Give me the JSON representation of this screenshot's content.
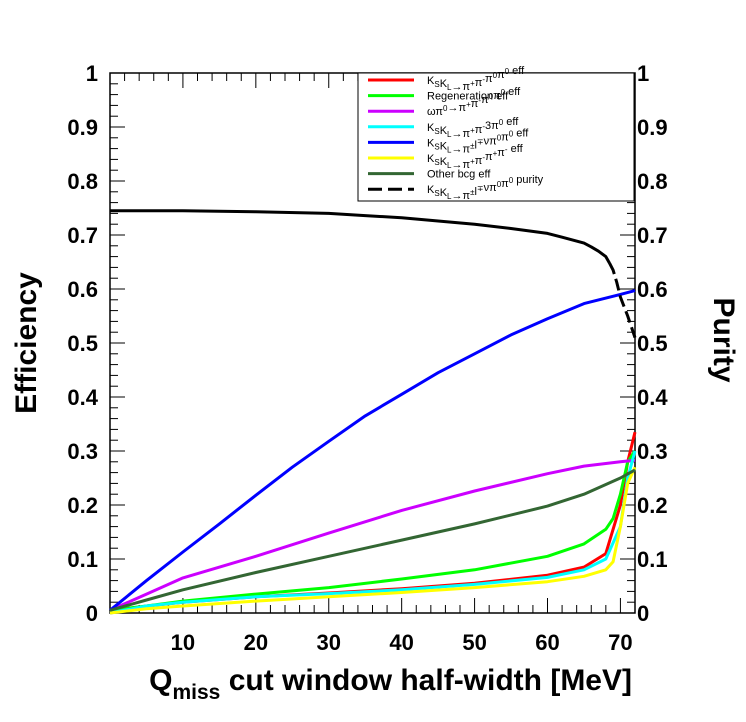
{
  "chart_data": {
    "type": "line",
    "xlabel": "Q",
    "xlabel_sub": "miss",
    "xlabel_rest": " cut window half-width [MeV]",
    "ylabel": "Efficiency",
    "ylabel_right": "Purity",
    "xlim": [
      0,
      72
    ],
    "ylim": [
      0,
      1
    ],
    "x_ticks": [
      10,
      20,
      30,
      40,
      50,
      60,
      70
    ],
    "y_ticks": [
      0,
      0.1,
      0.2,
      0.3,
      0.4,
      0.5,
      0.6,
      0.7,
      0.8,
      0.9,
      1
    ],
    "y_tick_labels": [
      "0",
      "0.1",
      "0.2",
      "0.3",
      "0.4",
      "0.5",
      "0.6",
      "0.7",
      "0.8",
      "0.9",
      "1"
    ],
    "legend_position": "top-right",
    "grid": false,
    "series": [
      {
        "name": "K_SK_L→π⁺π⁻π⁰π⁰ eff",
        "legend_parts": [
          [
            "K",
            ""
          ],
          [
            "S",
            "sub"
          ],
          [
            "K",
            ""
          ],
          [
            "L",
            "sub"
          ],
          [
            "→π",
            ""
          ],
          [
            "+",
            "sup"
          ],
          [
            "π",
            ""
          ],
          [
            "-",
            "sup"
          ],
          [
            "π",
            ""
          ],
          [
            "0",
            "sup"
          ],
          [
            "π",
            ""
          ],
          [
            "0",
            "sup"
          ],
          [
            " eff",
            ""
          ]
        ],
        "color": "#ff0000",
        "dash": false,
        "x": [
          0,
          5,
          10,
          20,
          30,
          40,
          50,
          60,
          65,
          68,
          70,
          71,
          72
        ],
        "y": [
          0.0,
          0.013,
          0.02,
          0.03,
          0.037,
          0.045,
          0.055,
          0.07,
          0.085,
          0.11,
          0.2,
          0.28,
          0.335
        ]
      },
      {
        "name": "Regeneration eff",
        "legend_parts": [
          [
            "Regeneration eff",
            ""
          ]
        ],
        "color": "#00ff00",
        "dash": false,
        "x": [
          0,
          5,
          10,
          20,
          30,
          40,
          50,
          60,
          65,
          68,
          69,
          70,
          71,
          72
        ],
        "y": [
          0.005,
          0.013,
          0.022,
          0.035,
          0.047,
          0.063,
          0.08,
          0.105,
          0.128,
          0.155,
          0.175,
          0.22,
          0.28,
          0.3
        ]
      },
      {
        "name": "ωπ⁰→π⁺π⁻π⁰π⁰ eff",
        "legend_parts": [
          [
            "ωπ",
            ""
          ],
          [
            "0",
            "sup"
          ],
          [
            "→π",
            ""
          ],
          [
            "+",
            "sup"
          ],
          [
            "π",
            ""
          ],
          [
            "-",
            "sup"
          ],
          [
            "π",
            ""
          ],
          [
            "0",
            "sup"
          ],
          [
            "π",
            ""
          ],
          [
            "0",
            "sup"
          ],
          [
            " eff",
            ""
          ]
        ],
        "color": "#cc00ff",
        "dash": false,
        "x": [
          0,
          5,
          10,
          20,
          30,
          40,
          50,
          60,
          65,
          70,
          72
        ],
        "y": [
          0.005,
          0.035,
          0.065,
          0.105,
          0.148,
          0.19,
          0.226,
          0.258,
          0.272,
          0.28,
          0.283
        ]
      },
      {
        "name": "K_SK_L→π⁺π⁻3π⁰ eff",
        "legend_parts": [
          [
            "K",
            ""
          ],
          [
            "S",
            "sub"
          ],
          [
            "K",
            ""
          ],
          [
            "L",
            "sub"
          ],
          [
            "→π",
            ""
          ],
          [
            "+",
            "sup"
          ],
          [
            "π",
            ""
          ],
          [
            "-",
            "sup"
          ],
          [
            "3π",
            ""
          ],
          [
            "0",
            "sup"
          ],
          [
            " eff",
            ""
          ]
        ],
        "color": "#00ffff",
        "dash": false,
        "x": [
          0,
          5,
          10,
          20,
          30,
          40,
          50,
          60,
          65,
          68,
          70,
          71,
          72
        ],
        "y": [
          0.0,
          0.013,
          0.02,
          0.03,
          0.036,
          0.043,
          0.053,
          0.066,
          0.08,
          0.1,
          0.16,
          0.25,
          0.3
        ]
      },
      {
        "name": "K_SK_L→π±l∓νπ⁰π⁰ eff",
        "legend_parts": [
          [
            "K",
            ""
          ],
          [
            "S",
            "sub"
          ],
          [
            "K",
            ""
          ],
          [
            "L",
            "sub"
          ],
          [
            "→π",
            ""
          ],
          [
            "±",
            "sup"
          ],
          [
            "l",
            ""
          ],
          [
            "∓",
            "sup"
          ],
          [
            "νπ",
            ""
          ],
          [
            "0",
            "sup"
          ],
          [
            "π",
            ""
          ],
          [
            "0",
            "sup"
          ],
          [
            " eff",
            ""
          ]
        ],
        "color": "#0000ff",
        "dash": false,
        "x": [
          0,
          5,
          10,
          15,
          20,
          25,
          30,
          35,
          40,
          45,
          50,
          55,
          60,
          65,
          70,
          72
        ],
        "y": [
          0.005,
          0.06,
          0.113,
          0.165,
          0.218,
          0.27,
          0.318,
          0.365,
          0.405,
          0.445,
          0.48,
          0.515,
          0.545,
          0.573,
          0.59,
          0.597
        ]
      },
      {
        "name": "K_SK_L→π⁺π⁻π⁺π⁻ eff",
        "legend_parts": [
          [
            "K",
            ""
          ],
          [
            "S",
            "sub"
          ],
          [
            "K",
            ""
          ],
          [
            "L",
            "sub"
          ],
          [
            "→π",
            ""
          ],
          [
            "+",
            "sup"
          ],
          [
            "π",
            ""
          ],
          [
            "-",
            "sup"
          ],
          [
            "π",
            ""
          ],
          [
            "+",
            "sup"
          ],
          [
            "π",
            ""
          ],
          [
            "-",
            "sup"
          ],
          [
            " eff",
            ""
          ]
        ],
        "color": "#ffff00",
        "dash": false,
        "x": [
          0,
          5,
          10,
          20,
          30,
          40,
          50,
          60,
          65,
          68,
          69,
          70,
          71,
          72
        ],
        "y": [
          0.0,
          0.008,
          0.013,
          0.022,
          0.03,
          0.038,
          0.047,
          0.058,
          0.068,
          0.08,
          0.095,
          0.16,
          0.24,
          0.27
        ]
      },
      {
        "name": "Other bcg eff",
        "legend_parts": [
          [
            "Other bcg eff",
            ""
          ]
        ],
        "color": "#336633",
        "dash": false,
        "x": [
          0,
          5,
          10,
          20,
          30,
          40,
          50,
          60,
          65,
          70,
          72
        ],
        "y": [
          0.005,
          0.024,
          0.043,
          0.075,
          0.105,
          0.135,
          0.165,
          0.198,
          0.22,
          0.25,
          0.265
        ]
      },
      {
        "name": "K_SK_L→π±l∓νπ⁰π⁰ purity",
        "legend_parts": [
          [
            "K",
            ""
          ],
          [
            "S",
            "sub"
          ],
          [
            "K",
            ""
          ],
          [
            "L",
            "sub"
          ],
          [
            "→π",
            ""
          ],
          [
            "±",
            "sup"
          ],
          [
            "l",
            ""
          ],
          [
            "∓",
            "sup"
          ],
          [
            "νπ",
            ""
          ],
          [
            "0",
            "sup"
          ],
          [
            "π",
            ""
          ],
          [
            "0",
            "sup"
          ],
          [
            " purity",
            ""
          ]
        ],
        "color": "#000000",
        "dash": true,
        "x": [
          0,
          10,
          20,
          30,
          35,
          40,
          45,
          50,
          55,
          60,
          62,
          65,
          66,
          67,
          68,
          68.5,
          69,
          69.5,
          70,
          71,
          72
        ],
        "y": [
          0.745,
          0.745,
          0.743,
          0.74,
          0.736,
          0.732,
          0.726,
          0.72,
          0.712,
          0.703,
          0.696,
          0.685,
          0.678,
          0.67,
          0.66,
          0.648,
          0.635,
          0.612,
          0.585,
          0.55,
          0.51
        ]
      }
    ]
  }
}
